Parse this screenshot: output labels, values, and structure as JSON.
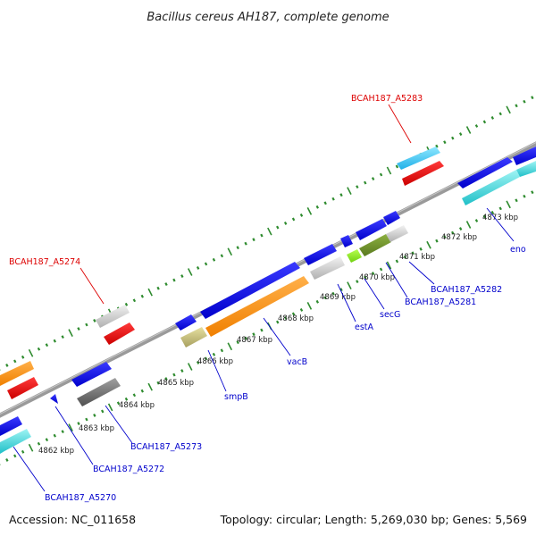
{
  "title": "Bacillus cereus AH187, complete genome",
  "footer": {
    "accession": "Accession: NC_011658",
    "summary": "Topology: circular; Length: 5,269,030 bp; Genes: 5,569"
  },
  "colors": {
    "backbone": "#808080",
    "tick": "#2e8b2e",
    "label_red": "#dd0000",
    "label_blue": "#0000cc"
  },
  "ticks": [
    {
      "label": "4862 kbp"
    },
    {
      "label": "4863 kbp"
    },
    {
      "label": "4864 kbp"
    },
    {
      "label": "4865 kbp"
    },
    {
      "label": "4866 kbp"
    },
    {
      "label": "4867 kbp"
    },
    {
      "label": "4868 kbp"
    },
    {
      "label": "4869 kbp"
    },
    {
      "label": "4870 kbp"
    },
    {
      "label": "4871 kbp"
    },
    {
      "label": "4872 kbp"
    },
    {
      "label": "4873 kbp"
    }
  ],
  "gene_labels": [
    {
      "text": "BCAH187_A5283",
      "color": "red"
    },
    {
      "text": "BCAH187_A5274",
      "color": "red"
    },
    {
      "text": "eno",
      "color": "blue"
    },
    {
      "text": "BCAH187_A5282",
      "color": "blue"
    },
    {
      "text": "BCAH187_A5281",
      "color": "blue"
    },
    {
      "text": "secG",
      "color": "blue"
    },
    {
      "text": "estA",
      "color": "blue"
    },
    {
      "text": "vacB",
      "color": "blue"
    },
    {
      "text": "smpB",
      "color": "blue"
    },
    {
      "text": "BCAH187_A5273",
      "color": "blue"
    },
    {
      "text": "BCAH187_A5272",
      "color": "blue"
    },
    {
      "text": "BCAH187_A5270",
      "color": "blue"
    }
  ]
}
